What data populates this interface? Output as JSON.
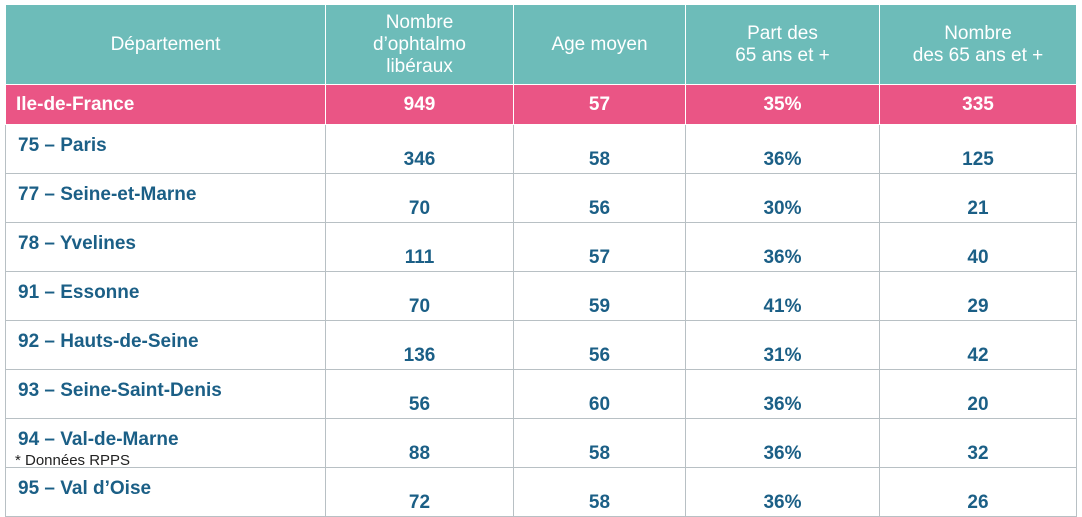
{
  "table": {
    "headers": [
      "Département",
      "Nombre\nd’ophtalmo\nlibéraux",
      "Age moyen",
      "Part des\n65 ans et +",
      "Nombre\ndes 65 ans et +"
    ],
    "region": {
      "name": "Ile-de-France",
      "count": "949",
      "age": "57",
      "share": "35%",
      "n65": "335"
    },
    "rows": [
      {
        "name": "75 – Paris",
        "count": "346",
        "age": "58",
        "share": "36%",
        "n65": "125"
      },
      {
        "name": "77 – Seine-et-Marne",
        "count": "70",
        "age": "56",
        "share": "30%",
        "n65": "21"
      },
      {
        "name": "78 – Yvelines",
        "count": "111",
        "age": "57",
        "share": "36%",
        "n65": "40"
      },
      {
        "name": "91 – Essonne",
        "count": "70",
        "age": "59",
        "share": "41%",
        "n65": "29"
      },
      {
        "name": "92 – Hauts-de-Seine",
        "count": "136",
        "age": "56",
        "share": "31%",
        "n65": "42"
      },
      {
        "name": "93 – Seine-Saint-Denis",
        "count": "56",
        "age": "60",
        "share": "36%",
        "n65": "20"
      },
      {
        "name": "94 – Val-de-Marne",
        "count": "88",
        "age": "58",
        "share": "36%",
        "n65": "32"
      },
      {
        "name": "95 – Val d’Oise",
        "count": "72",
        "age": "58",
        "share": "36%",
        "n65": "26"
      }
    ]
  },
  "footnote": "* Données RPPS",
  "colors": {
    "header": "#6dbcb9",
    "region": "#ea5585",
    "text": "#1b5f86"
  }
}
